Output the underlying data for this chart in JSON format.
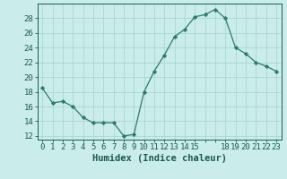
{
  "x": [
    0,
    1,
    2,
    3,
    4,
    5,
    6,
    7,
    8,
    9,
    10,
    11,
    12,
    13,
    14,
    15,
    16,
    17,
    18,
    19,
    20,
    21,
    22,
    23
  ],
  "y": [
    18.5,
    16.5,
    16.7,
    16.0,
    14.5,
    13.8,
    13.8,
    13.8,
    12.0,
    12.2,
    18.0,
    20.8,
    23.0,
    25.5,
    26.5,
    28.2,
    28.5,
    29.2,
    28.0,
    24.0,
    23.2,
    22.0,
    21.5,
    20.8
  ],
  "line_color": "#2d7a6e",
  "marker": "D",
  "marker_size": 2.2,
  "bg_color": "#caecea",
  "grid_color": "#a8d8d4",
  "tick_color": "#1a5a50",
  "xlabel": "Humidex (Indice chaleur)",
  "ylabel": "",
  "xlim": [
    -0.5,
    23.5
  ],
  "ylim": [
    11.5,
    30
  ],
  "yticks": [
    12,
    14,
    16,
    18,
    20,
    22,
    24,
    26,
    28
  ],
  "xticks": [
    0,
    1,
    2,
    3,
    4,
    5,
    6,
    7,
    8,
    9,
    10,
    11,
    12,
    13,
    14,
    15,
    16,
    17,
    18,
    19,
    20,
    21,
    22,
    23
  ],
  "xtick_labels": [
    "0",
    "1",
    "2",
    "3",
    "4",
    "5",
    "6",
    "7",
    "8",
    "9",
    "10",
    "11",
    "12",
    "13",
    "14",
    "15",
    "",
    "",
    "18",
    "19",
    "20",
    "21",
    "22",
    "23"
  ],
  "font_size": 6.5,
  "xlabel_fontsize": 7.5
}
